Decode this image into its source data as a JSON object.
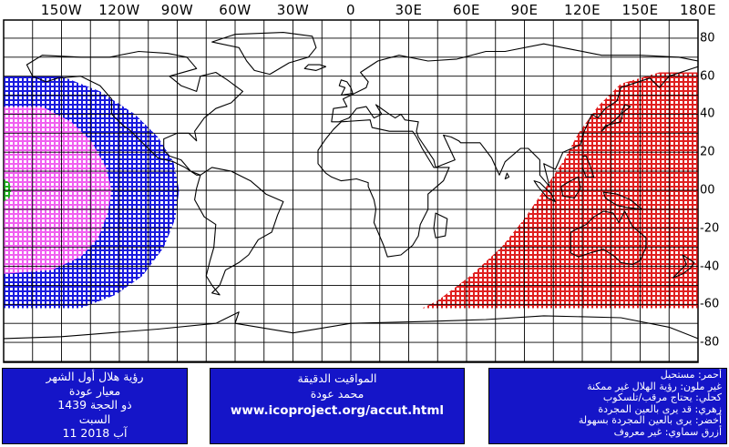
{
  "map": {
    "lon_labels": [
      "150W",
      "120W",
      "90W",
      "60W",
      "30W",
      "0",
      "30E",
      "60E",
      "90E",
      "120E",
      "150E",
      "180E"
    ],
    "lat_labels": [
      "80",
      "60",
      "40",
      "20",
      "00",
      "-20",
      "-40",
      "-60",
      "-80"
    ],
    "grid_lon_step_deg": 15,
    "grid_lat_step_deg": 10,
    "colors": {
      "red": "#e02020",
      "blue": "#1a1ae0",
      "magenta": "#f060f0",
      "green": "#20b020",
      "grid": "#000000",
      "coast": "#000000"
    }
  },
  "panels": {
    "left": {
      "lines": [
        "رؤية هلال أول الشهر",
        "معيار عودة",
        "ذو الحجة 1439",
        "السبت",
        "11 آب 2018"
      ]
    },
    "middle": {
      "title": "المواقيت الدقيقة",
      "author": "محمد عودة",
      "url": "www.icoproject.org/accut.html"
    },
    "right": {
      "legend": [
        "أحمر: مستحيل",
        "غير ملون: رؤية الهلال غير ممكنة",
        "كحلي: يحتاج مرقب/تلسكوب",
        "زهري: قد يرى بالعين المجردة",
        "أخضر: يرى بالعين المجردة بسهولة",
        "أزرق سماوي: غير معروف"
      ]
    }
  }
}
